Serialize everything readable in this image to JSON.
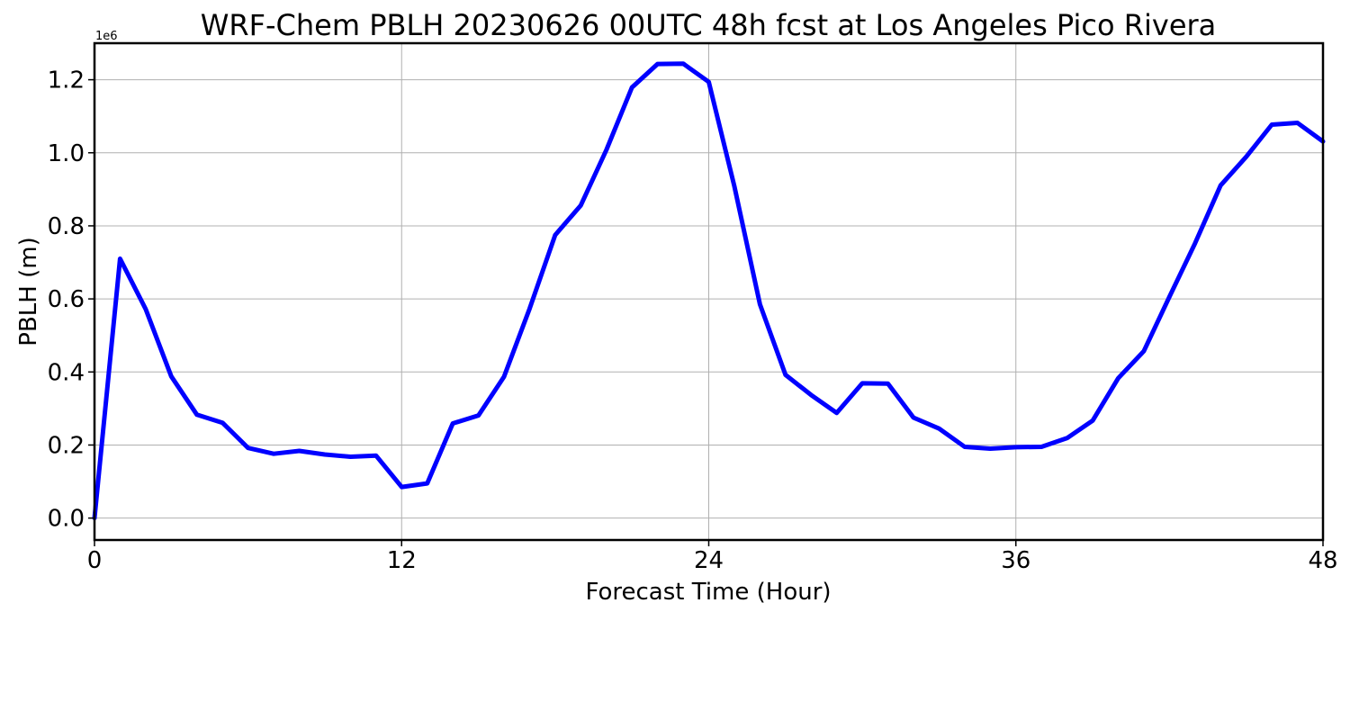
{
  "chart_data": {
    "type": "line",
    "title": "WRF-Chem PBLH  20230626 00UTC 48h fcst at Los Angeles Pico Rivera",
    "xlabel": "Forecast Time (Hour)",
    "ylabel": "PBLH  (m)",
    "y_offset_label": "1e6",
    "y_scale_factor": 1000000,
    "xlim": [
      0,
      48
    ],
    "ylim": [
      -60000,
      1300000
    ],
    "x_ticks": [
      0,
      12,
      24,
      36,
      48
    ],
    "x_tick_labels": [
      "0",
      "12",
      "24",
      "36",
      "48"
    ],
    "y_ticks": [
      0,
      200000,
      400000,
      600000,
      800000,
      1000000,
      1200000
    ],
    "y_tick_labels": [
      "0.0",
      "0.2",
      "0.4",
      "0.6",
      "0.8",
      "1.0",
      "1.2"
    ],
    "grid": true,
    "line_color": "#0000ff",
    "x": [
      0,
      1,
      2,
      3,
      4,
      5,
      6,
      7,
      8,
      9,
      10,
      11,
      12,
      13,
      14,
      15,
      16,
      17,
      18,
      19,
      20,
      21,
      22,
      23,
      24,
      25,
      26,
      27,
      28,
      29,
      30,
      31,
      32,
      33,
      34,
      35,
      36,
      37,
      38,
      39,
      40,
      41,
      42,
      43,
      44,
      45,
      46,
      47,
      48
    ],
    "y": [
      0,
      710000,
      572000,
      388000,
      283000,
      261000,
      192000,
      176000,
      184000,
      174000,
      168000,
      171000,
      85000,
      95000,
      259000,
      281000,
      387000,
      573000,
      775000,
      856000,
      1008000,
      1179000,
      1243000,
      1244000,
      1194000,
      909000,
      585000,
      392000,
      337000,
      288000,
      369000,
      368000,
      275000,
      245000,
      195000,
      190000,
      194000,
      195000,
      219000,
      267000,
      383000,
      457000,
      606000,
      752000,
      911000,
      989000,
      1077000,
      1082000,
      1031000
    ]
  }
}
